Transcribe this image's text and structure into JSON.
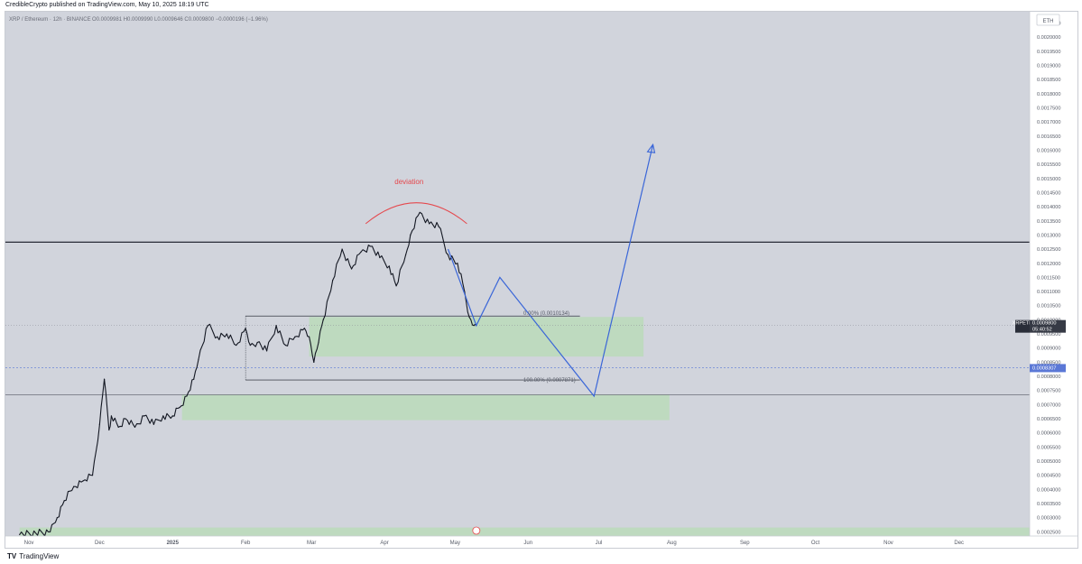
{
  "header": {
    "published": "CredibleCrypto published on TradingView.com, May 10, 2025 18:19 UTC"
  },
  "footer": {
    "brand": "TradingView",
    "logo": "tradingview-logo-icon"
  },
  "legend": {
    "symbol": "XRP / Ethereum · 12h · BINANCE",
    "ohlc": "O0.0009981  H0.0009990  L0.0009646  C0.0009800  −0.0000196 (−1.96%)"
  },
  "currency_badge": "ETH",
  "price_tags": {
    "symbol": "XRPETH",
    "price": "0.0009800",
    "countdown": "05:40:52",
    "crosshair": "0.0008307"
  },
  "colors": {
    "candles": "#131722",
    "projection": "#3a66d8",
    "deviation": "#e5484d",
    "zone_fill": "#b7dcb5",
    "resistance": "#131722",
    "crosshair": "#5b78d6"
  },
  "chart_data": {
    "type": "line",
    "symbol": "XRPETH",
    "timeframe": "12h",
    "exchange": "BINANCE",
    "x_ticks": [
      "Nov",
      "Dec",
      "2025",
      "Feb",
      "Mar",
      "Apr",
      "May",
      "Jun",
      "Jul",
      "Aug",
      "Sep",
      "Oct",
      "Nov",
      "Dec"
    ],
    "y_ticks": [
      "0.0020500",
      "0.0020000",
      "0.0019500",
      "0.0019000",
      "0.0018500",
      "0.0018000",
      "0.0017500",
      "0.0017000",
      "0.0016500",
      "0.0016000",
      "0.0015500",
      "0.0015000",
      "0.0014500",
      "0.0014000",
      "0.0013500",
      "0.0013000",
      "0.0012500",
      "0.0012000",
      "0.0011500",
      "0.0011000",
      "0.0010500",
      "0.0010000",
      "0.0009500",
      "0.0009000",
      "0.0008500",
      "0.0008000",
      "0.0007500",
      "0.0007000",
      "0.0006500",
      "0.0006000",
      "0.0005500",
      "0.0005000",
      "0.0004500",
      "0.0004000",
      "0.0003500",
      "0.0003000",
      "0.0002500"
    ],
    "ylim": [
      0.000235,
      0.00209
    ],
    "price_series": {
      "x": [
        "2024-10-28",
        "2024-11-10",
        "2024-11-13",
        "2024-11-16",
        "2024-11-20",
        "2024-11-24",
        "2024-11-28",
        "2024-12-01",
        "2024-12-03",
        "2024-12-05",
        "2024-12-06",
        "2024-12-09",
        "2024-12-12",
        "2024-12-16",
        "2024-12-20",
        "2024-12-24",
        "2024-12-28",
        "2025-01-01",
        "2025-01-04",
        "2025-01-07",
        "2025-01-10",
        "2025-01-12",
        "2025-01-16",
        "2025-01-20",
        "2025-01-24",
        "2025-01-28",
        "2025-02-01",
        "2025-02-03",
        "2025-02-06",
        "2025-02-10",
        "2025-02-14",
        "2025-02-18",
        "2025-02-22",
        "2025-02-26",
        "2025-02-28",
        "2025-03-02",
        "2025-03-04",
        "2025-03-06",
        "2025-03-10",
        "2025-03-14",
        "2025-03-18",
        "2025-03-22",
        "2025-03-26",
        "2025-03-30",
        "2025-04-03",
        "2025-04-06",
        "2025-04-10",
        "2025-04-12",
        "2025-04-16",
        "2025-04-20",
        "2025-04-24",
        "2025-04-28",
        "2025-05-02",
        "2025-05-05",
        "2025-05-07",
        "2025-05-09",
        "2025-05-10"
      ],
      "y": [
        0.00024,
        0.00025,
        0.0003,
        0.00036,
        0.00041,
        0.00043,
        0.00045,
        0.00063,
        0.00079,
        0.00061,
        0.00066,
        0.00062,
        0.00065,
        0.00062,
        0.00066,
        0.00063,
        0.00066,
        0.00066,
        0.00069,
        0.00073,
        0.00079,
        0.00086,
        0.00098,
        0.00094,
        0.00095,
        0.00091,
        0.00097,
        0.00091,
        0.00092,
        0.00089,
        0.00098,
        0.00091,
        0.00094,
        0.00097,
        0.00094,
        0.00085,
        0.00092,
        0.001,
        0.00114,
        0.00125,
        0.00118,
        0.00124,
        0.00126,
        0.00122,
        0.00119,
        0.00112,
        0.00123,
        0.0013,
        0.00138,
        0.00134,
        0.00133,
        0.00123,
        0.0012,
        0.0011,
        0.00101,
        0.00098,
        0.00098
      ]
    },
    "annotations": {
      "deviation_label": "deviation",
      "fib_0": "0.00% (0.0010134)",
      "fib_100": "100.00% (0.0007871)",
      "fib_levels": [
        0.0010134,
        0.0007871
      ],
      "resistance_level": 0.001275,
      "support_line": 0.000735,
      "crosshair_level": 0.0008307,
      "last_price": 0.00098,
      "zones": [
        {
          "from": "2025-02-28",
          "to": "2025-07-20",
          "low": 0.00087,
          "high": 0.00101
        },
        {
          "from": "2025-01-05",
          "to": "2025-07-31",
          "low": 0.000645,
          "high": 0.000735
        },
        {
          "from": "2024-10-28",
          "to": "2025-12-31",
          "low": 0.000235,
          "high": 0.000265
        }
      ],
      "projection": {
        "x": [
          "2025-05-10",
          "2025-05-20",
          "2025-06-29",
          "2025-07-24"
        ],
        "y": [
          0.00098,
          0.00115,
          0.00073,
          0.00162
        ]
      }
    }
  }
}
